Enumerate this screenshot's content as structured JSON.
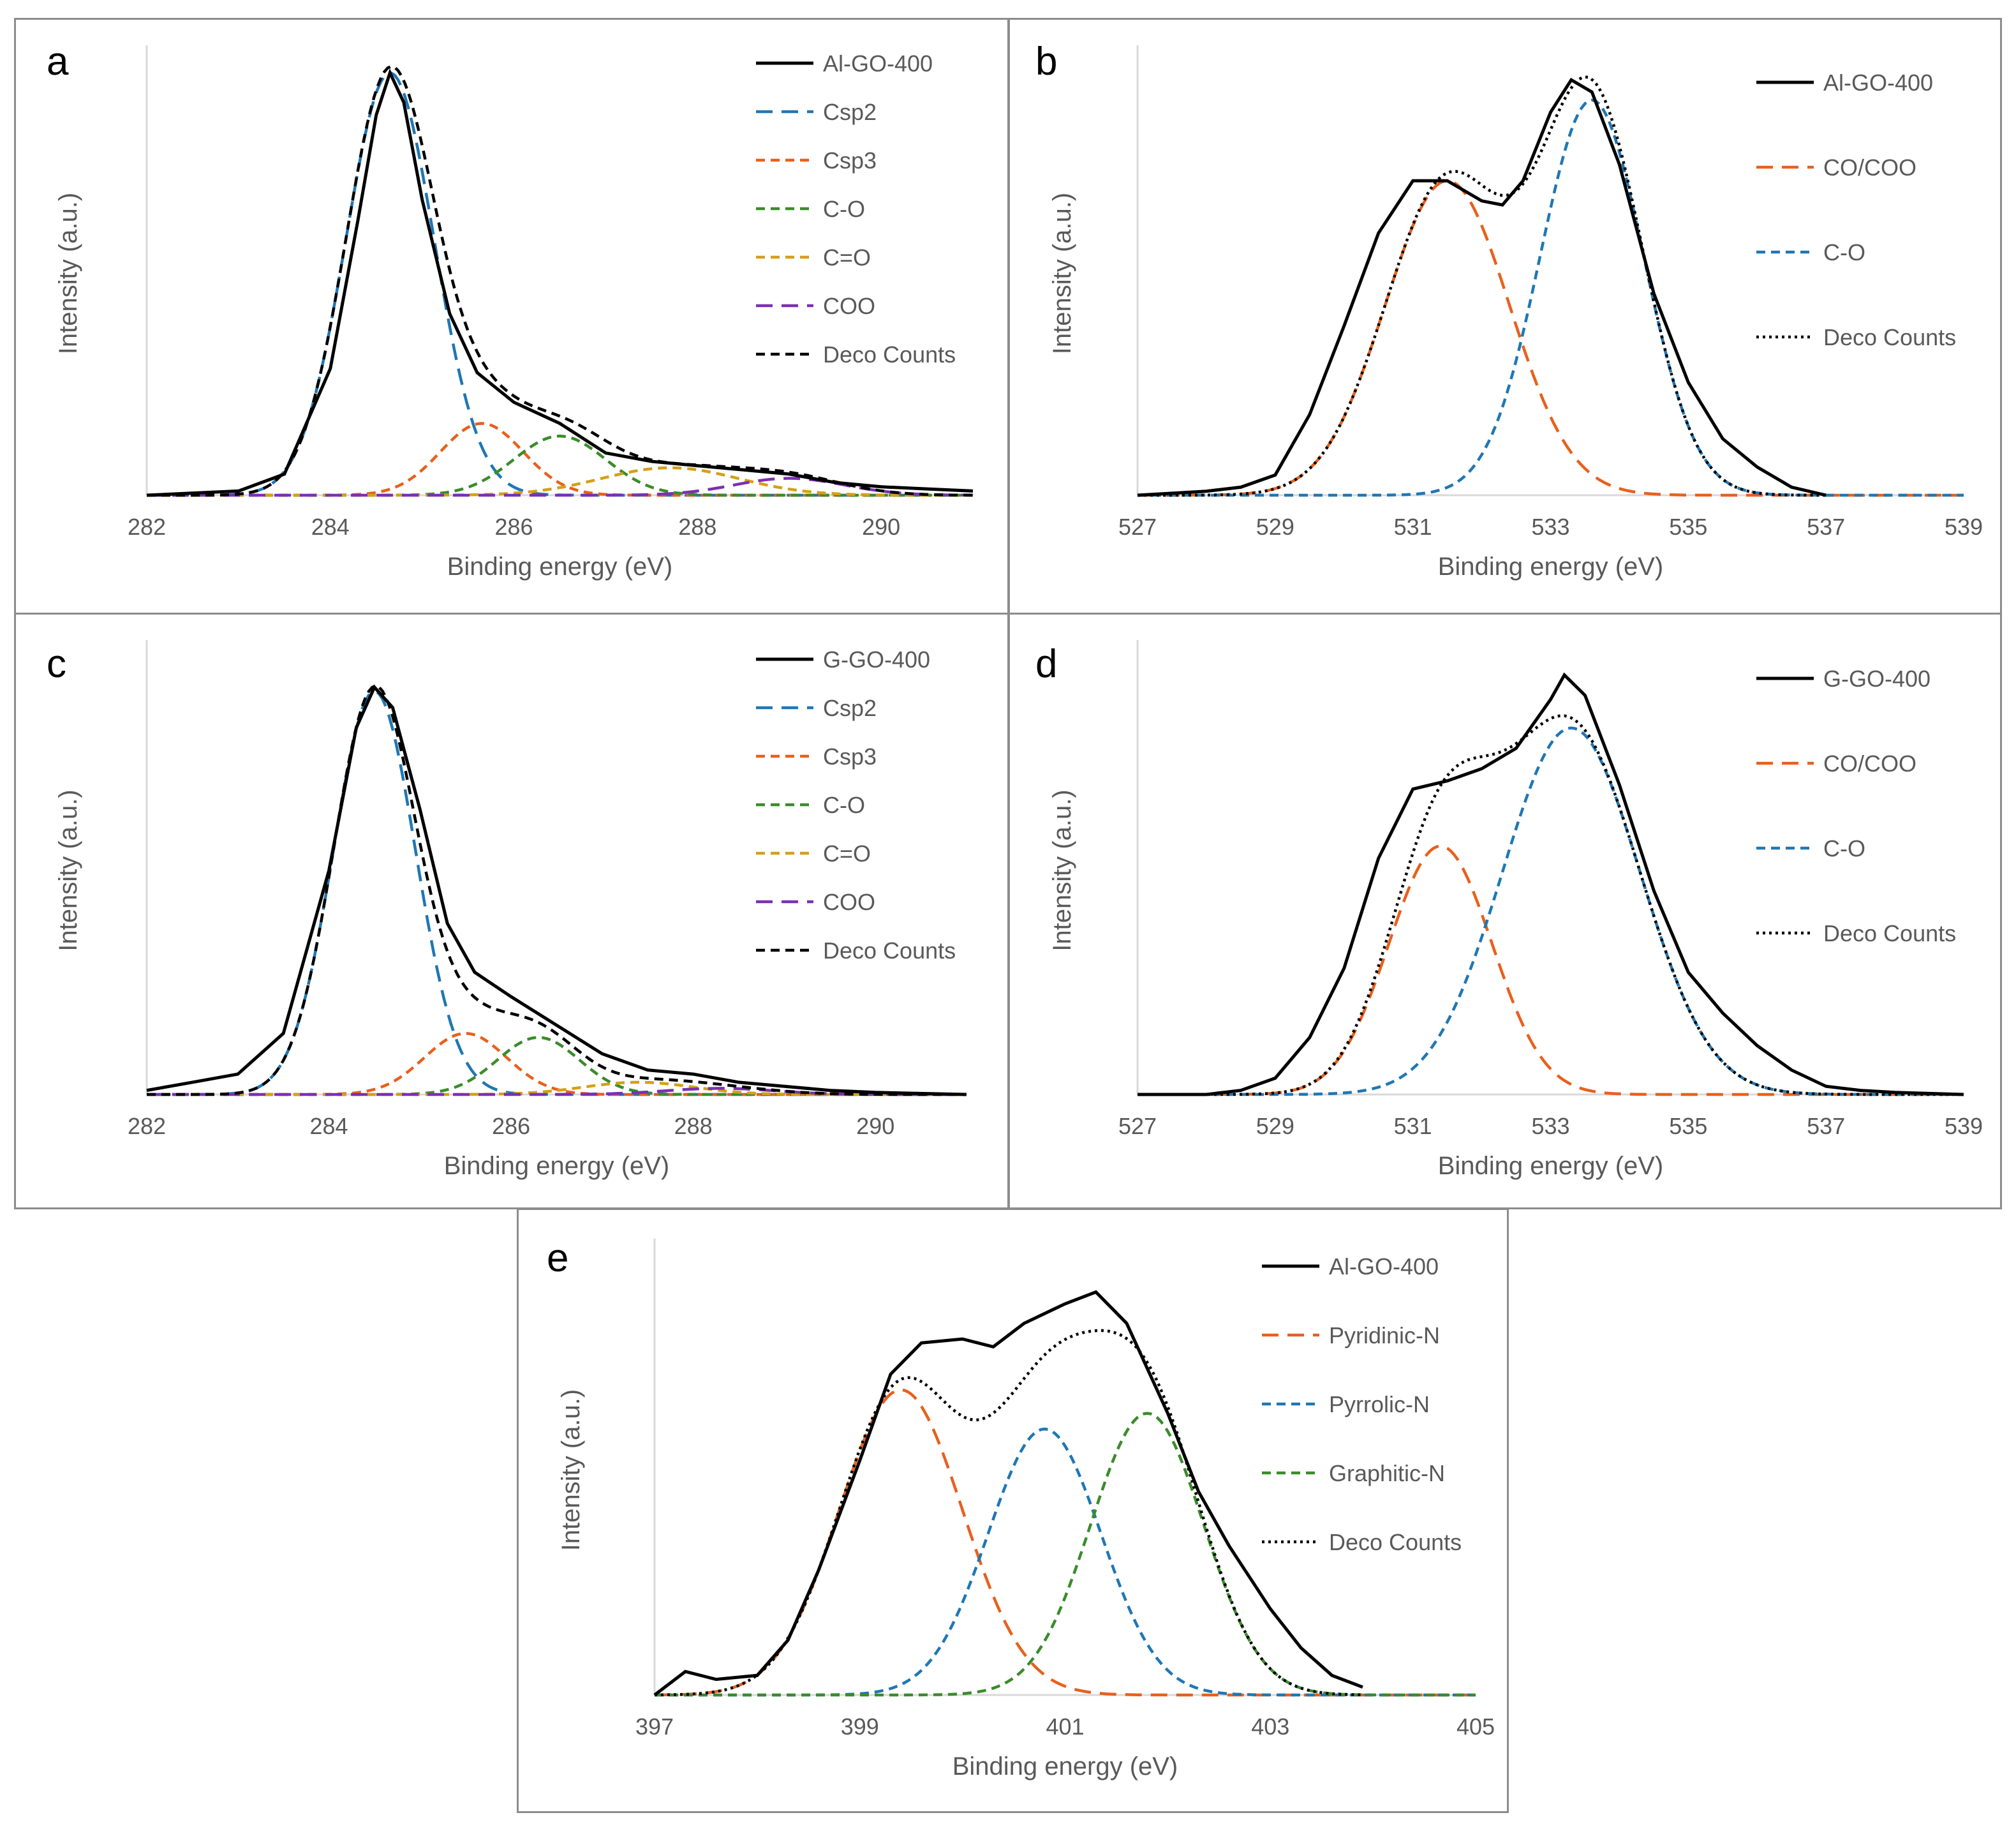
{
  "chart_data": [
    {
      "panel": "a",
      "type": "line",
      "xlabel": "Binding energy (eV)",
      "ylabel": "Intensity (a.u.)",
      "xlim": [
        282,
        291
      ],
      "xticks": [
        282,
        284,
        286,
        288,
        290
      ],
      "ylim": [
        0,
        1.05
      ],
      "legend_location": "top-right",
      "series": [
        {
          "name": "Al-GO-400",
          "style": "solid",
          "color": "#000000",
          "x": [
            282,
            283,
            283.5,
            284,
            284.3,
            284.5,
            284.65,
            284.8,
            285,
            285.3,
            285.6,
            286,
            286.5,
            287,
            287.5,
            288,
            288.5,
            289,
            289.5,
            290,
            290.5,
            291
          ],
          "y": [
            0,
            0.01,
            0.05,
            0.3,
            0.65,
            0.9,
            1.0,
            0.93,
            0.7,
            0.43,
            0.29,
            0.22,
            0.17,
            0.1,
            0.08,
            0.07,
            0.06,
            0.05,
            0.03,
            0.02,
            0.015,
            0.01
          ]
        },
        {
          "name": "Csp2",
          "style": "longdash",
          "color": "#1f77b4",
          "peak": {
            "center": 284.65,
            "height": 1.0,
            "sigma": 0.48
          }
        },
        {
          "name": "Csp3",
          "style": "dash",
          "color": "#e8601c",
          "peak": {
            "center": 285.65,
            "height": 0.17,
            "sigma": 0.45
          }
        },
        {
          "name": "C-O",
          "style": "dash",
          "color": "#3a8c2a",
          "peak": {
            "center": 286.5,
            "height": 0.14,
            "sigma": 0.5
          }
        },
        {
          "name": "C=O",
          "style": "dash",
          "color": "#d4a017",
          "peak": {
            "center": 287.7,
            "height": 0.065,
            "sigma": 0.75
          }
        },
        {
          "name": "COO",
          "style": "longdash",
          "color": "#7b2fb5",
          "peak": {
            "center": 289.0,
            "height": 0.04,
            "sigma": 0.6
          }
        },
        {
          "name": "Deco Counts",
          "style": "dash",
          "color": "#000000",
          "sum": true
        }
      ]
    },
    {
      "panel": "b",
      "type": "line",
      "xlabel": "Binding energy (eV)",
      "ylabel": "Intensity (a.u.)",
      "xlim": [
        527,
        539
      ],
      "xticks": [
        527,
        529,
        531,
        533,
        535,
        537,
        539
      ],
      "ylim": [
        0,
        1.1
      ],
      "legend_location": "top-right",
      "series": [
        {
          "name": "Al-GO-400",
          "style": "solid",
          "color": "#000000",
          "x": [
            527,
            528,
            528.5,
            529,
            529.5,
            530,
            530.5,
            531,
            531.5,
            532,
            532.3,
            532.6,
            533,
            533.3,
            533.6,
            534,
            534.5,
            535,
            535.5,
            536,
            536.5,
            537
          ],
          "y": [
            0,
            0.01,
            0.02,
            0.05,
            0.2,
            0.42,
            0.65,
            0.78,
            0.78,
            0.73,
            0.72,
            0.78,
            0.95,
            1.03,
            1.0,
            0.82,
            0.5,
            0.28,
            0.14,
            0.07,
            0.02,
            0.0
          ]
        },
        {
          "name": "CO/COO",
          "style": "longdash",
          "color": "#e8601c",
          "peak": {
            "center": 531.5,
            "height": 0.78,
            "sigma": 0.9
          }
        },
        {
          "name": "C-O",
          "style": "dash",
          "color": "#1f77b4",
          "peak": {
            "center": 533.6,
            "height": 0.98,
            "sigma": 0.75
          }
        },
        {
          "name": "Deco Counts",
          "style": "dot",
          "color": "#000000",
          "sum": true
        }
      ]
    },
    {
      "panel": "c",
      "type": "line",
      "xlabel": "Binding energy (eV)",
      "ylabel": "Intensity (a.u.)",
      "xlim": [
        282,
        291
      ],
      "xticks": [
        282,
        284,
        286,
        288,
        290
      ],
      "ylim": [
        0,
        1.1
      ],
      "legend_location": "top-right",
      "series": [
        {
          "name": "G-GO-400",
          "style": "solid",
          "color": "#000000",
          "x": [
            282,
            282.5,
            283,
            283.5,
            284,
            284.3,
            284.5,
            284.7,
            285,
            285.3,
            285.6,
            286,
            286.5,
            287,
            287.5,
            288,
            288.5,
            289,
            289.5,
            290,
            291
          ],
          "y": [
            0.01,
            0.03,
            0.05,
            0.15,
            0.55,
            0.9,
            1.0,
            0.95,
            0.7,
            0.42,
            0.3,
            0.24,
            0.17,
            0.1,
            0.06,
            0.05,
            0.03,
            0.02,
            0.01,
            0.005,
            0.0
          ]
        },
        {
          "name": "Csp2",
          "style": "longdash",
          "color": "#1f77b4",
          "peak": {
            "center": 284.5,
            "height": 0.99,
            "sigma": 0.45
          }
        },
        {
          "name": "Csp3",
          "style": "dash",
          "color": "#e8601c",
          "peak": {
            "center": 285.5,
            "height": 0.15,
            "sigma": 0.45
          }
        },
        {
          "name": "C-O",
          "style": "dash",
          "color": "#3a8c2a",
          "peak": {
            "center": 286.3,
            "height": 0.14,
            "sigma": 0.45
          }
        },
        {
          "name": "C=O",
          "style": "dash",
          "color": "#d4a017",
          "peak": {
            "center": 287.4,
            "height": 0.03,
            "sigma": 0.6
          }
        },
        {
          "name": "COO",
          "style": "longdash",
          "color": "#7b2fb5",
          "peak": {
            "center": 288.3,
            "height": 0.015,
            "sigma": 0.6
          }
        },
        {
          "name": "Deco Counts",
          "style": "dash",
          "color": "#000000",
          "sum": true
        }
      ]
    },
    {
      "panel": "d",
      "type": "line",
      "xlabel": "Binding energy (eV)",
      "ylabel": "Intensity (a.u.)",
      "xlim": [
        527,
        539
      ],
      "xticks": [
        527,
        529,
        531,
        533,
        535,
        537,
        539
      ],
      "ylim": [
        0,
        1.1
      ],
      "legend_location": "top-right",
      "series": [
        {
          "name": "G-GO-400",
          "style": "solid",
          "color": "#000000",
          "x": [
            527,
            528,
            528.5,
            529,
            529.5,
            530,
            530.5,
            531,
            531.5,
            532,
            532.5,
            533,
            533.2,
            533.5,
            534,
            534.5,
            535,
            535.5,
            536,
            536.5,
            537,
            537.5,
            538,
            539
          ],
          "y": [
            0,
            0.0,
            0.01,
            0.04,
            0.14,
            0.31,
            0.58,
            0.75,
            0.77,
            0.8,
            0.85,
            0.97,
            1.03,
            0.98,
            0.76,
            0.5,
            0.3,
            0.2,
            0.12,
            0.06,
            0.02,
            0.01,
            0.005,
            0.0
          ]
        },
        {
          "name": "CO/COO",
          "style": "longdash",
          "color": "#e8601c",
          "peak": {
            "center": 531.4,
            "height": 0.61,
            "sigma": 0.75
          }
        },
        {
          "name": "C-O",
          "style": "dash",
          "color": "#1f77b4",
          "peak": {
            "center": 533.3,
            "height": 0.9,
            "sigma": 1.0
          }
        },
        {
          "name": "Deco Counts",
          "style": "dot",
          "color": "#000000",
          "sum": true
        }
      ]
    },
    {
      "panel": "e",
      "type": "line",
      "xlabel": "Binding energy (eV)",
      "ylabel": "Intensity (a.u.)",
      "xlim": [
        397,
        405
      ],
      "xticks": [
        397,
        399,
        401,
        403,
        405
      ],
      "ylim": [
        0,
        1.15
      ],
      "legend_location": "top-right",
      "series": [
        {
          "name": "Al-GO-400",
          "style": "solid",
          "color": "#000000",
          "x": [
            397,
            397.3,
            397.6,
            398,
            398.3,
            398.6,
            399,
            399.3,
            399.6,
            400,
            400.3,
            400.6,
            401,
            401.3,
            401.6,
            402,
            402.3,
            402.6,
            403,
            403.3,
            403.6,
            403.9
          ],
          "y": [
            0.0,
            0.06,
            0.04,
            0.05,
            0.14,
            0.32,
            0.6,
            0.82,
            0.9,
            0.91,
            0.89,
            0.95,
            1.0,
            1.03,
            0.95,
            0.72,
            0.52,
            0.38,
            0.22,
            0.12,
            0.05,
            0.02
          ]
        },
        {
          "name": "Pyridinic-N",
          "style": "longdash",
          "color": "#e8601c",
          "peak": {
            "center": 399.4,
            "height": 0.78,
            "sigma": 0.6
          }
        },
        {
          "name": "Pyrrolic-N",
          "style": "dash",
          "color": "#1f77b4",
          "peak": {
            "center": 400.8,
            "height": 0.68,
            "sigma": 0.55
          }
        },
        {
          "name": "Graphitic-N",
          "style": "dash",
          "color": "#3a8c2a",
          "peak": {
            "center": 401.8,
            "height": 0.72,
            "sigma": 0.55
          }
        },
        {
          "name": "Deco Counts",
          "style": "dot",
          "color": "#000000",
          "sum": true
        }
      ]
    }
  ]
}
